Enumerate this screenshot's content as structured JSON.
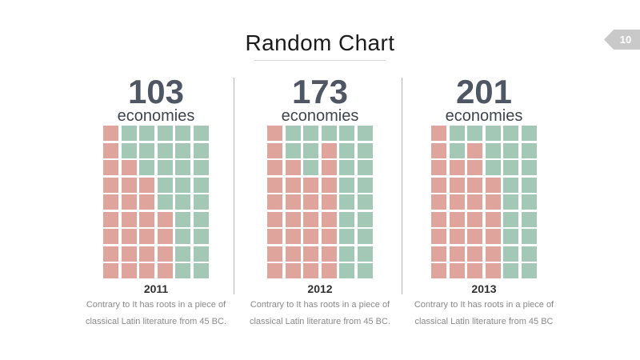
{
  "slide": {
    "title": "Random Chart",
    "page_number": "10"
  },
  "colors": {
    "salmon": "#dfa59c",
    "teal": "#a3c8b6",
    "big_number": "#4e5663",
    "economies_text": "#3f454e",
    "year_text": "#303030",
    "caption_text": "#8a8a8a",
    "badge_bg": "#c9c9c9",
    "badge_text": "#ffffff",
    "divider": "#b5b5b5",
    "title_text": "#1b1b1b",
    "title_underline": "#d9d9d9"
  },
  "columns": [
    {
      "value": "103",
      "unit": "economies",
      "year": "2011",
      "caption_line1": "Contrary to It has roots in a piece of",
      "caption_line2": "classical Latin literature from 45 BC."
    },
    {
      "value": "173",
      "unit": "economies",
      "year": "2012",
      "caption_line1": "Contrary to It has roots in a piece of",
      "caption_line2": "classical Latin literature from 45 BC."
    },
    {
      "value": "201",
      "unit": "economies",
      "year": "2013",
      "caption_line1": "Contrary to It has roots in a piece of",
      "caption_line2": "classical Latin literature from 45 BC"
    }
  ],
  "chart_data": {
    "type": "heatmap",
    "subtype": "waffle-grid",
    "title": "Random Chart",
    "grid": {
      "rows": 9,
      "cols": 6
    },
    "cell_legend": {
      "R": "salmon",
      "G": "teal"
    },
    "cell_colors": {
      "R": "#dfa59c",
      "G": "#a3c8b6"
    },
    "series": [
      {
        "name": "2011",
        "headline_value": 103,
        "headline_unit": "economies",
        "salmon_cells": 26,
        "teal_cells": 28,
        "rows": [
          "RGGGGG",
          "RGGGGG",
          "RRGGGG",
          "RRRGGG",
          "RRRGGG",
          "RRRRGG",
          "RRRRGG",
          "RRRRGG",
          "RRRRGG"
        ]
      },
      {
        "name": "2012",
        "headline_value": 173,
        "headline_unit": "economies",
        "salmon_cells": 30,
        "teal_cells": 24,
        "rows": [
          "RGGGGG",
          "RGGRGG",
          "RRGRGG",
          "RRRRGG",
          "RRRRGG",
          "RRRRGG",
          "RRRRGG",
          "RRRRGG",
          "RRRRGG"
        ]
      },
      {
        "name": "2013",
        "headline_value": 201,
        "headline_unit": "economies",
        "salmon_cells": 30,
        "teal_cells": 24,
        "rows": [
          "RGGGGG",
          "RGRGGG",
          "RRRGGG",
          "RRRRGG",
          "RRRRGG",
          "RRRRGG",
          "RRRRGG",
          "RRRRGG",
          "RRRRGG"
        ]
      }
    ]
  }
}
